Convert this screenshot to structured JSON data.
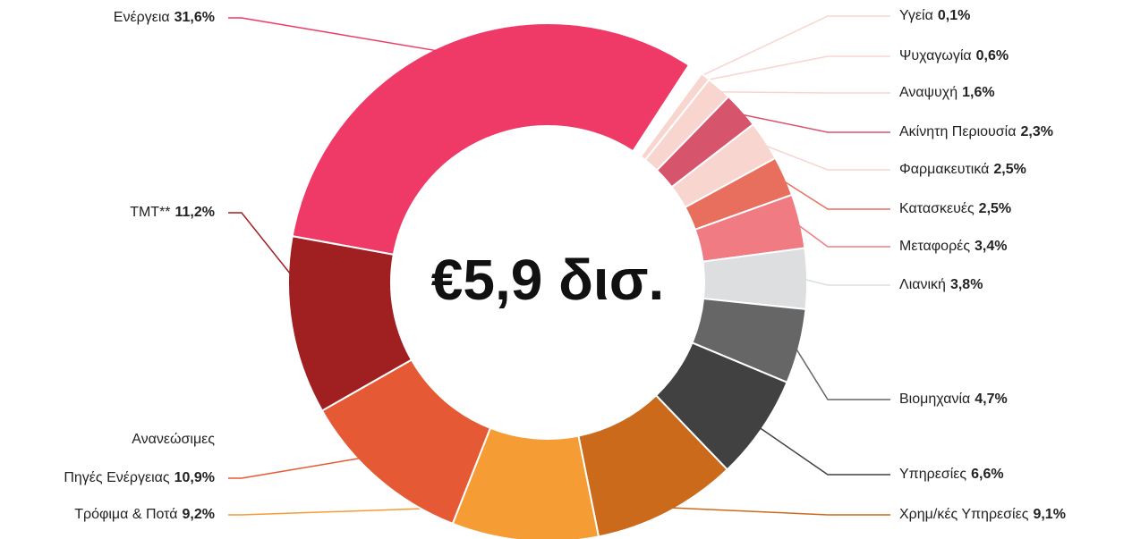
{
  "chart_data": {
    "type": "donut",
    "center_label": "€5,9 δισ.",
    "categories": [
      "Υγεία",
      "Ψυχαγωγία",
      "Αναψυχή",
      "Ακίνητη Περιουσία",
      "Φαρμακευτικά",
      "Κατασκευές",
      "Μεταφορές",
      "Λιανική",
      "Βιομηχανία",
      "Υπηρεσίες",
      "Χρημ/κές Υπηρεσίες",
      "Τρόφιμα & Ποτά",
      [
        "Ανανεώσιμες",
        "Πηγές Ενέργειας"
      ],
      "TMT**",
      "Ενέργεια"
    ],
    "values": [
      0.1,
      0.6,
      1.6,
      2.3,
      2.5,
      2.5,
      3.4,
      3.8,
      4.7,
      6.6,
      9.1,
      9.2,
      10.9,
      11.2,
      31.6
    ],
    "value_labels": [
      "0,1%",
      "0,6%",
      "1,6%",
      "2,3%",
      "2,5%",
      "2,5%",
      "3,4%",
      "3,8%",
      "4,7%",
      "6,6%",
      "9,1%",
      "9,2%",
      "10,9%",
      "11,2%",
      "31,6%"
    ],
    "colors": [
      "#f8d5cf",
      "#f8d5cf",
      "#f8d5cf",
      "#d7546d",
      "#f8d5cf",
      "#e86f5e",
      "#f17b82",
      "#dcdedf",
      "#666666",
      "#414141",
      "#cc6a1c",
      "#f59c34",
      "#e55a34",
      "#a01f20",
      "#ef3966"
    ]
  }
}
